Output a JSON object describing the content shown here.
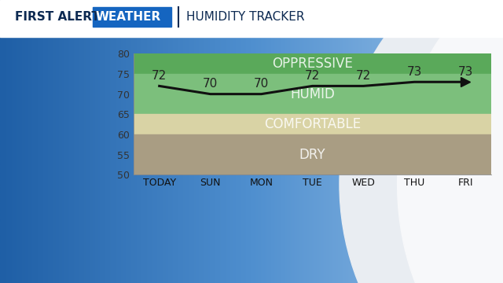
{
  "chart_data": {
    "type": "line",
    "brand": "FIRST ALERT",
    "brand_box": "WEATHER",
    "title": "HUMIDITY TRACKER",
    "categories": [
      "TODAY",
      "SUN",
      "MON",
      "TUE",
      "WED",
      "THU",
      "FRI"
    ],
    "values": [
      72,
      70,
      70,
      72,
      72,
      73,
      73
    ],
    "color": "#111111",
    "data_labels": true,
    "ylim": [
      50,
      80
    ],
    "yticks": [
      50,
      55,
      60,
      65,
      70,
      75,
      80
    ],
    "bands": [
      {
        "label": "OPPRESSIVE",
        "range": [
          75,
          80
        ],
        "color": "#5aa95a"
      },
      {
        "label": "HUMID",
        "range": [
          65,
          75
        ],
        "color": "#7cbf7c"
      },
      {
        "label": "COMFORTABLE",
        "range": [
          60,
          65
        ],
        "color": "#d9d3a5"
      },
      {
        "label": "DRY",
        "range": [
          50,
          60
        ],
        "color": "#a99d83"
      }
    ]
  }
}
